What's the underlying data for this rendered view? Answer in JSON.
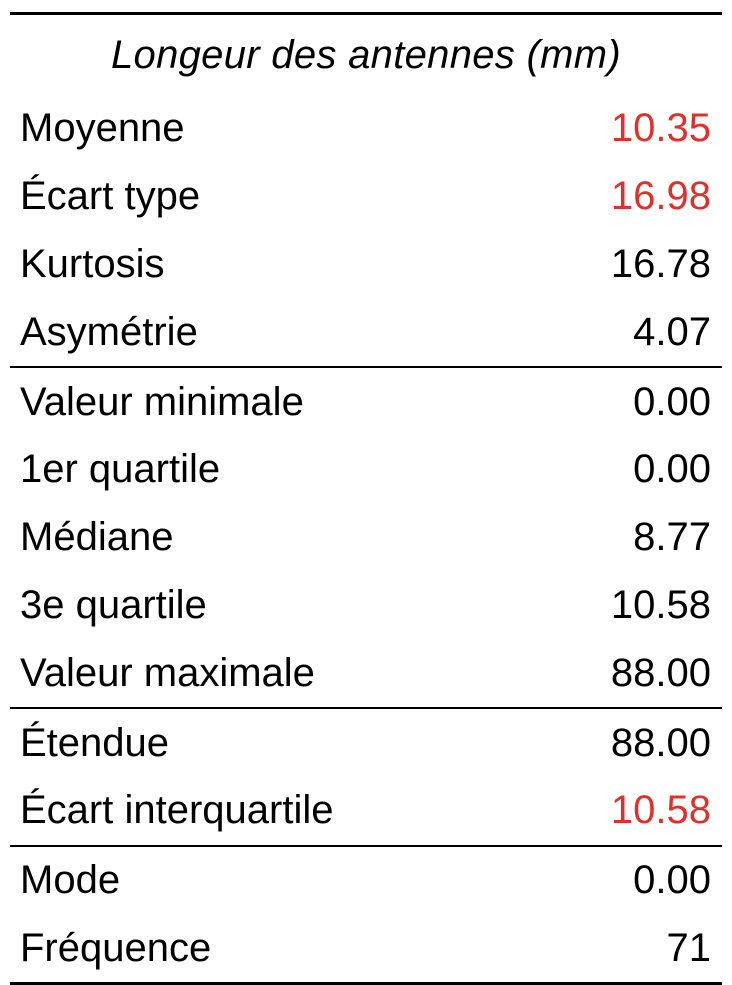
{
  "title": "Longeur des antennes (mm)",
  "highlight_color": "#e0302a",
  "groups": [
    {
      "rows": [
        {
          "label": "Moyenne",
          "value": "10.35",
          "highlight": true
        },
        {
          "label": "Écart type",
          "value": "16.98",
          "highlight": true
        },
        {
          "label": "Kurtosis",
          "value": "16.78",
          "highlight": false
        },
        {
          "label": "Asymétrie",
          "value": "4.07",
          "highlight": false
        }
      ]
    },
    {
      "rows": [
        {
          "label": "Valeur minimale",
          "value": "0.00",
          "highlight": false
        },
        {
          "label": "1er quartile",
          "value": "0.00",
          "highlight": false
        },
        {
          "label": "Médiane",
          "value": "8.77",
          "highlight": false
        },
        {
          "label": "3e quartile",
          "value": "10.58",
          "highlight": false
        },
        {
          "label": "Valeur maximale",
          "value": "88.00",
          "highlight": false
        }
      ]
    },
    {
      "rows": [
        {
          "label": "Étendue",
          "value": "88.00",
          "highlight": false
        },
        {
          "label": "Écart interquartile",
          "value": "10.58",
          "highlight": true
        }
      ]
    },
    {
      "rows": [
        {
          "label": "Mode",
          "value": "0.00",
          "highlight": false
        },
        {
          "label": "Fréquence",
          "value": "71",
          "highlight": false
        }
      ]
    }
  ]
}
